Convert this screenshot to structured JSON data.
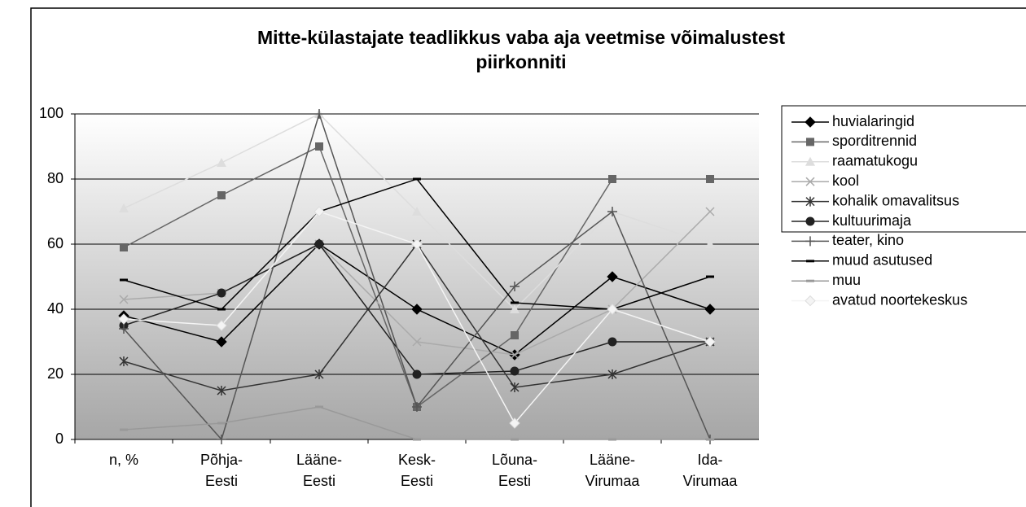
{
  "chart_data": {
    "type": "line",
    "title": "Mitte-külastajate teadlikkus vaba aja veetmise võimalustest piirkonniti",
    "categories": [
      "n, %",
      "Põhja-Eesti",
      "Lääne-Eesti",
      "Kesk-Eesti",
      "Lõuna-Eesti",
      "Lääne-Virumaa",
      "Ida-Virumaa"
    ],
    "ylim": [
      0,
      100
    ],
    "yticks": [
      0,
      20,
      40,
      60,
      80,
      100
    ],
    "grid": true,
    "legend": "right",
    "series": [
      {
        "name": "huvialaringid",
        "color": "#000000",
        "marker": "diamond",
        "values": [
          38,
          30,
          60,
          40,
          26,
          50,
          40
        ]
      },
      {
        "name": "sporditrennid",
        "color": "#666666",
        "marker": "square",
        "values": [
          59,
          75,
          90,
          10,
          32,
          80,
          80
        ]
      },
      {
        "name": "raamatukogu",
        "color": "#dddddd",
        "marker": "triangle",
        "values": [
          71,
          85,
          100,
          70,
          40,
          70,
          60
        ]
      },
      {
        "name": "kool",
        "color": "#aaaaaa",
        "marker": "x",
        "values": [
          43,
          45,
          60,
          30,
          26,
          40,
          70
        ]
      },
      {
        "name": "kohalik omavalitsus",
        "color": "#333333",
        "marker": "star",
        "values": [
          24,
          15,
          20,
          60,
          16,
          20,
          30
        ]
      },
      {
        "name": "kultuurimaja",
        "color": "#222222",
        "marker": "circle",
        "values": [
          35,
          45,
          60,
          20,
          21,
          30,
          30
        ]
      },
      {
        "name": "teater, kino",
        "color": "#555555",
        "marker": "plus",
        "values": [
          34,
          0,
          100,
          10,
          47,
          70,
          0
        ]
      },
      {
        "name": "muud asutused",
        "color": "#000000",
        "marker": "dash",
        "values": [
          49,
          40,
          70,
          80,
          42,
          40,
          50
        ]
      },
      {
        "name": "muu",
        "color": "#999999",
        "marker": "dash",
        "values": [
          3,
          5,
          10,
          0,
          0,
          0,
          0
        ]
      },
      {
        "name": "avatud noortekeskus",
        "color": "#f4f4f4",
        "marker": "diamond",
        "values": [
          37,
          35,
          70,
          60,
          5,
          40,
          30
        ]
      }
    ]
  }
}
